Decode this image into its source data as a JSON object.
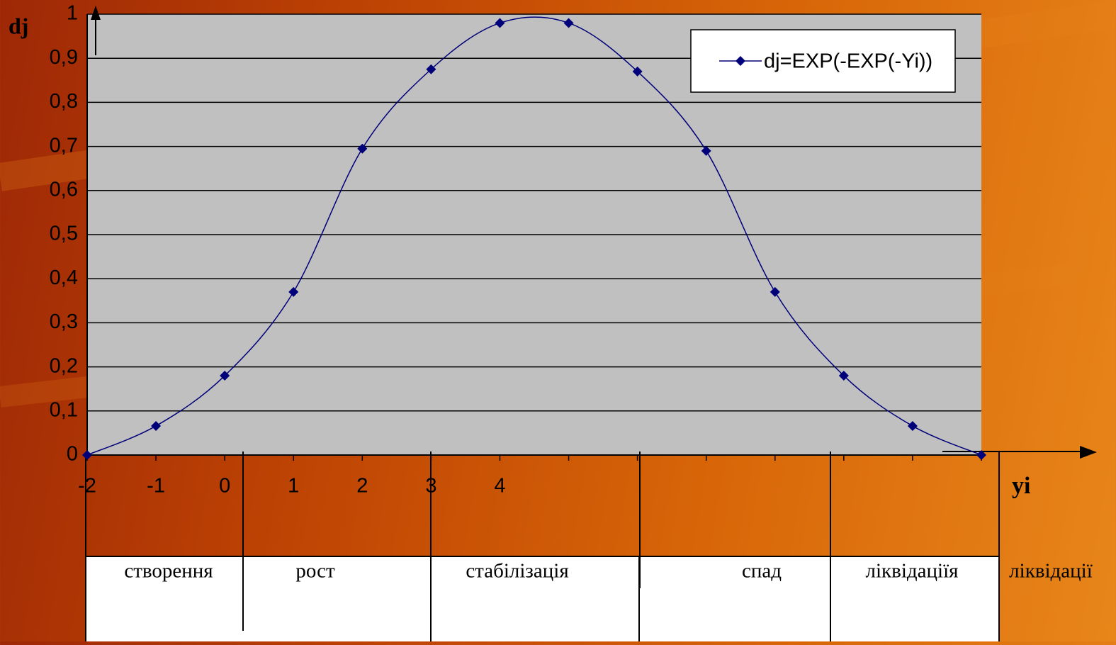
{
  "chart_data": {
    "type": "line",
    "y_label": "dj",
    "x_label": "yi",
    "categories": [
      -2,
      -1,
      0,
      1,
      2,
      3,
      4,
      null,
      null,
      null,
      null,
      null,
      null,
      null
    ],
    "series": [
      {
        "name": "dj=EXP(-EXP(-Yi))",
        "color": "#00007a",
        "values": [
          0,
          0.066,
          0.18,
          0.37,
          0.695,
          0.875,
          0.98,
          0.98,
          0.87,
          0.69,
          0.37,
          0.18,
          0.066,
          0
        ]
      }
    ],
    "ylim": [
      0,
      1
    ],
    "yticks": [
      0,
      {
        "value": 0.1,
        "label": "0,1"
      },
      {
        "value": 0.2,
        "label": "0,2"
      },
      {
        "value": 0.3,
        "label": "0,3"
      },
      {
        "value": 0.4,
        "label": "0,4"
      },
      {
        "value": 0.5,
        "label": "0,5"
      },
      {
        "value": 0.6,
        "label": "0,6"
      },
      {
        "value": 0.7,
        "label": "0,7"
      },
      {
        "value": 0.8,
        "label": "0,8"
      },
      {
        "value": 0.9,
        "label": "0,9"
      },
      1
    ],
    "grid": true,
    "legend": "top-right",
    "stages": [
      "створення",
      "рост",
      "стабілізація",
      "спад",
      "ліквідаціїя",
      "ліквідації"
    ]
  }
}
